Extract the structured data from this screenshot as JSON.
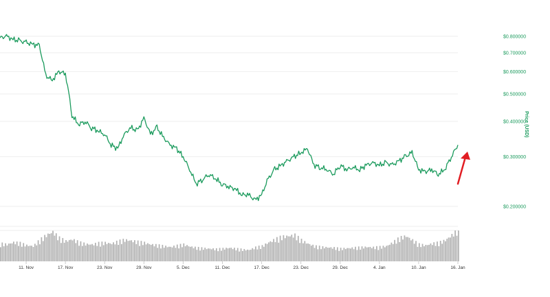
{
  "chart_data": {
    "type": "line",
    "ylabel": "Price (USD)",
    "yscale": "log",
    "ylim": [
      0.17,
      0.86
    ],
    "y_ticks": [
      {
        "value": 0.8,
        "label": "$0.800000"
      },
      {
        "value": 0.7,
        "label": "$0.700000"
      },
      {
        "value": 0.6,
        "label": "$0.600000"
      },
      {
        "value": 0.5,
        "label": "$0.500000"
      },
      {
        "value": 0.4,
        "label": "$0.400000"
      },
      {
        "value": 0.3,
        "label": "$0.300000"
      },
      {
        "value": 0.2,
        "label": "$0.200000"
      }
    ],
    "x_tick_labels": [
      "11. Nov",
      "17. Nov",
      "23. Nov",
      "29. Nov",
      "5. Dec",
      "11. Dec",
      "17. Dec",
      "23. Dec",
      "29. Dec",
      "4. Jan",
      "10. Jan",
      "16. Jan"
    ],
    "x_range": [
      "2017-11-07",
      "2018-01-16"
    ],
    "grid": true,
    "series": [
      {
        "color": "#1a9a5c",
        "x": [
          "2017-11-07",
          "2017-11-08",
          "2017-11-09",
          "2017-11-10",
          "2017-11-11",
          "2017-11-12",
          "2017-11-13",
          "2017-11-14",
          "2017-11-15",
          "2017-11-16",
          "2017-11-17",
          "2017-11-18",
          "2017-11-19",
          "2017-11-20",
          "2017-11-21",
          "2017-11-22",
          "2017-11-23",
          "2017-11-24",
          "2017-11-25",
          "2017-11-26",
          "2017-11-27",
          "2017-11-28",
          "2017-11-29",
          "2017-11-30",
          "2017-12-01",
          "2017-12-02",
          "2017-12-03",
          "2017-12-04",
          "2017-12-05",
          "2017-12-06",
          "2017-12-07",
          "2017-12-08",
          "2017-12-09",
          "2017-12-10",
          "2017-12-11",
          "2017-12-12",
          "2017-12-13",
          "2017-12-14",
          "2017-12-15",
          "2017-12-16",
          "2017-12-17",
          "2017-12-18",
          "2017-12-19",
          "2017-12-20",
          "2017-12-21",
          "2017-12-22",
          "2017-12-23",
          "2017-12-24",
          "2017-12-25",
          "2017-12-26",
          "2017-12-27",
          "2017-12-28",
          "2017-12-29",
          "2017-12-30",
          "2017-12-31",
          "2018-01-01",
          "2018-01-02",
          "2018-01-03",
          "2018-01-04",
          "2018-01-05",
          "2018-01-06",
          "2018-01-07",
          "2018-01-08",
          "2018-01-09",
          "2018-01-10",
          "2018-01-11",
          "2018-01-12",
          "2018-01-13",
          "2018-01-14",
          "2018-01-15",
          "2018-01-16"
        ],
        "values": [
          0.79,
          0.8,
          0.78,
          0.77,
          0.76,
          0.75,
          0.74,
          0.58,
          0.56,
          0.6,
          0.59,
          0.42,
          0.39,
          0.4,
          0.38,
          0.37,
          0.36,
          0.33,
          0.32,
          0.36,
          0.38,
          0.37,
          0.41,
          0.36,
          0.38,
          0.35,
          0.33,
          0.32,
          0.3,
          0.27,
          0.24,
          0.25,
          0.26,
          0.25,
          0.24,
          0.235,
          0.23,
          0.22,
          0.22,
          0.21,
          0.22,
          0.25,
          0.27,
          0.28,
          0.29,
          0.3,
          0.31,
          0.32,
          0.28,
          0.275,
          0.27,
          0.26,
          0.28,
          0.27,
          0.275,
          0.27,
          0.28,
          0.285,
          0.28,
          0.285,
          0.28,
          0.29,
          0.3,
          0.31,
          0.27,
          0.265,
          0.27,
          0.26,
          0.27,
          0.3,
          0.33
        ]
      }
    ],
    "volume": [
      0.42,
      0.4,
      0.45,
      0.43,
      0.38,
      0.36,
      0.5,
      0.62,
      0.7,
      0.55,
      0.48,
      0.52,
      0.45,
      0.41,
      0.4,
      0.43,
      0.44,
      0.42,
      0.47,
      0.51,
      0.49,
      0.46,
      0.44,
      0.4,
      0.38,
      0.36,
      0.34,
      0.37,
      0.4,
      0.35,
      0.32,
      0.31,
      0.3,
      0.29,
      0.3,
      0.32,
      0.3,
      0.28,
      0.27,
      0.33,
      0.36,
      0.45,
      0.52,
      0.58,
      0.6,
      0.62,
      0.5,
      0.42,
      0.36,
      0.34,
      0.33,
      0.32,
      0.3,
      0.31,
      0.32,
      0.33,
      0.34,
      0.33,
      0.34,
      0.36,
      0.45,
      0.55,
      0.6,
      0.5,
      0.4,
      0.38,
      0.42,
      0.44,
      0.5,
      0.62,
      0.78
    ]
  }
}
